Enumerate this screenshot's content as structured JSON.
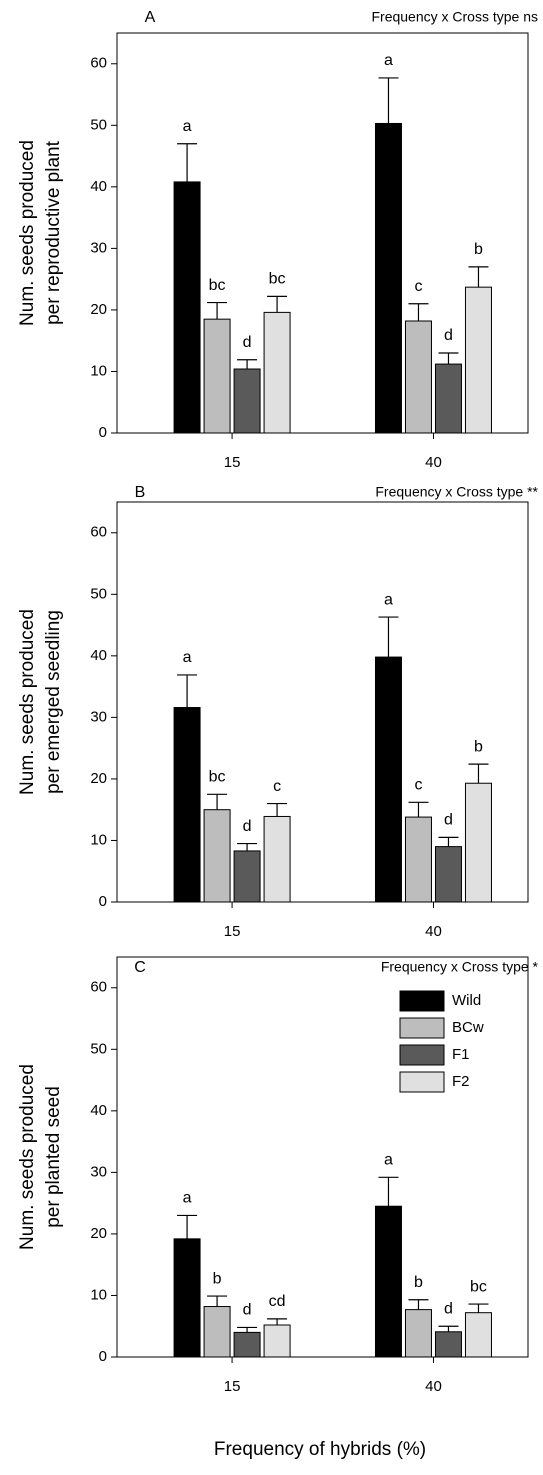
{
  "chart_data": [
    {
      "type": "bar",
      "panel_label": "A",
      "title": "Frequency x Cross type ns",
      "ylabel": [
        "Num. seeds produced",
        "per reproductive plant"
      ],
      "categories": [
        "15",
        "40"
      ],
      "ylim": [
        0,
        65
      ],
      "yticks": [
        0,
        10,
        20,
        30,
        40,
        50,
        60
      ],
      "series": [
        {
          "name": "Wild",
          "color": "#000000",
          "values": [
            40.8,
            50.3
          ],
          "errors": [
            6.2,
            7.4
          ],
          "letters": [
            "a",
            "a"
          ]
        },
        {
          "name": "BCw",
          "color": "#bdbdbd",
          "values": [
            18.5,
            18.2
          ],
          "errors": [
            2.7,
            2.8
          ],
          "letters": [
            "bc",
            "c"
          ]
        },
        {
          "name": "F1",
          "color": "#5a5a5a",
          "values": [
            10.4,
            11.2
          ],
          "errors": [
            1.5,
            1.8
          ],
          "letters": [
            "d",
            "d"
          ]
        },
        {
          "name": "F2",
          "color": "#e0e0e0",
          "values": [
            19.6,
            23.7
          ],
          "errors": [
            2.6,
            3.3
          ],
          "letters": [
            "bc",
            "b"
          ]
        }
      ]
    },
    {
      "type": "bar",
      "panel_label": "B",
      "title": "Frequency x Cross type **",
      "ylabel": [
        "Num. seeds produced",
        "per emerged seedling"
      ],
      "categories": [
        "15",
        "40"
      ],
      "ylim": [
        0,
        65
      ],
      "yticks": [
        0,
        10,
        20,
        30,
        40,
        50,
        60
      ],
      "series": [
        {
          "name": "Wild",
          "color": "#000000",
          "values": [
            31.6,
            39.8
          ],
          "errors": [
            5.3,
            6.5
          ],
          "letters": [
            "a",
            "a"
          ]
        },
        {
          "name": "BCw",
          "color": "#bdbdbd",
          "values": [
            15.0,
            13.8
          ],
          "errors": [
            2.5,
            2.4
          ],
          "letters": [
            "bc",
            "c"
          ]
        },
        {
          "name": "F1",
          "color": "#5a5a5a",
          "values": [
            8.3,
            9.0
          ],
          "errors": [
            1.2,
            1.5
          ],
          "letters": [
            "d",
            "d"
          ]
        },
        {
          "name": "F2",
          "color": "#e0e0e0",
          "values": [
            13.9,
            19.3
          ],
          "errors": [
            2.1,
            3.1
          ],
          "letters": [
            "c",
            "b"
          ]
        }
      ]
    },
    {
      "type": "bar",
      "panel_label": "C",
      "title": "Frequency x Cross type *",
      "ylabel": [
        "Num. seeds produced",
        "per planted seed"
      ],
      "xlabel": "Frequency of hybrids (%)",
      "legend": "upper right",
      "categories": [
        "15",
        "40"
      ],
      "ylim": [
        0,
        65
      ],
      "yticks": [
        0,
        10,
        20,
        30,
        40,
        50,
        60
      ],
      "series": [
        {
          "name": "Wild",
          "color": "#000000",
          "values": [
            19.2,
            24.5
          ],
          "errors": [
            3.8,
            4.7
          ],
          "letters": [
            "a",
            "a"
          ]
        },
        {
          "name": "BCw",
          "color": "#bdbdbd",
          "values": [
            8.2,
            7.7
          ],
          "errors": [
            1.7,
            1.6
          ],
          "letters": [
            "b",
            "b"
          ]
        },
        {
          "name": "F1",
          "color": "#5a5a5a",
          "values": [
            4.0,
            4.1
          ],
          "errors": [
            0.8,
            0.9
          ],
          "letters": [
            "d",
            "d"
          ]
        },
        {
          "name": "F2",
          "color": "#e0e0e0",
          "values": [
            5.2,
            7.2
          ],
          "errors": [
            1.0,
            1.4
          ],
          "letters": [
            "cd",
            "bc"
          ]
        }
      ]
    }
  ]
}
